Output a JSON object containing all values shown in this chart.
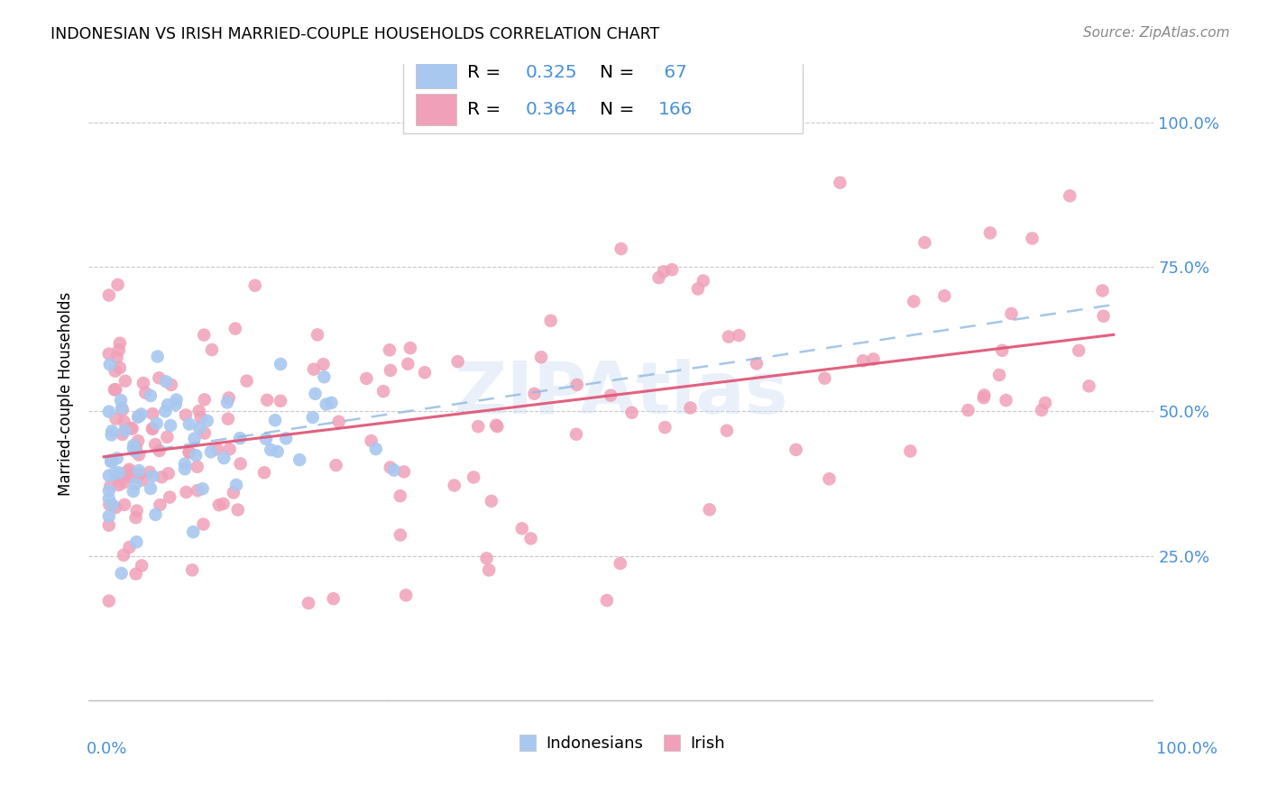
{
  "title": "INDONESIAN VS IRISH MARRIED-COUPLE HOUSEHOLDS CORRELATION CHART",
  "source": "Source: ZipAtlas.com",
  "ylabel": "Married-couple Households",
  "legend_blue_R": "0.325",
  "legend_blue_N": "67",
  "legend_pink_R": "0.364",
  "legend_pink_N": "166",
  "blue_color": "#a8c8f0",
  "pink_color": "#f0a0b8",
  "blue_line_color": "#90b8e0",
  "pink_line_color": "#e05878",
  "watermark_color": "#c8daf0",
  "blue_seed": 101,
  "pink_seed": 202,
  "title_fontsize": 12.5,
  "source_fontsize": 11,
  "legend_fontsize": 14,
  "axis_label_color": "#4a90d9",
  "axis_label_fontsize": 13
}
